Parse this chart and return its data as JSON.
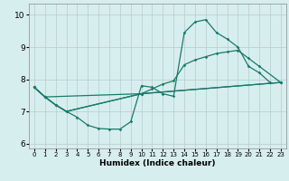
{
  "xlabel": "Humidex (Indice chaleur)",
  "xlim": [
    -0.5,
    23.5
  ],
  "ylim": [
    5.85,
    10.35
  ],
  "yticks": [
    6,
    7,
    8,
    9,
    10
  ],
  "xticks": [
    0,
    1,
    2,
    3,
    4,
    5,
    6,
    7,
    8,
    9,
    10,
    11,
    12,
    13,
    14,
    15,
    16,
    17,
    18,
    19,
    20,
    21,
    22,
    23
  ],
  "bg_color": "#d7eeee",
  "grid_color": "#b8cbcb",
  "line_color": "#1a7a6a",
  "line1_x": [
    0,
    1,
    2,
    3,
    4,
    5,
    6,
    7,
    8,
    9,
    10,
    11,
    12,
    13,
    14,
    15,
    16,
    17,
    18,
    19,
    20,
    21,
    22
  ],
  "line1_y": [
    7.75,
    7.45,
    7.2,
    7.0,
    6.82,
    6.57,
    6.47,
    6.45,
    6.45,
    6.68,
    7.8,
    7.75,
    7.55,
    7.47,
    9.45,
    9.78,
    9.85,
    9.45,
    9.25,
    9.0,
    8.4,
    8.2,
    7.9
  ],
  "line2_x": [
    0,
    1,
    10,
    23
  ],
  "line2_y": [
    7.75,
    7.45,
    7.55,
    7.9
  ],
  "line3_x": [
    0,
    1,
    2,
    3,
    10,
    11,
    12,
    13,
    14,
    15,
    16,
    17,
    18,
    19,
    20,
    21,
    23
  ],
  "line3_y": [
    7.75,
    7.45,
    7.2,
    7.0,
    7.55,
    7.7,
    7.85,
    7.95,
    8.45,
    8.6,
    8.7,
    8.8,
    8.85,
    8.9,
    8.65,
    8.4,
    7.9
  ],
  "line4_x": [
    0,
    1,
    2,
    3,
    10,
    23
  ],
  "line4_y": [
    7.75,
    7.45,
    7.2,
    7.0,
    7.55,
    7.9
  ]
}
